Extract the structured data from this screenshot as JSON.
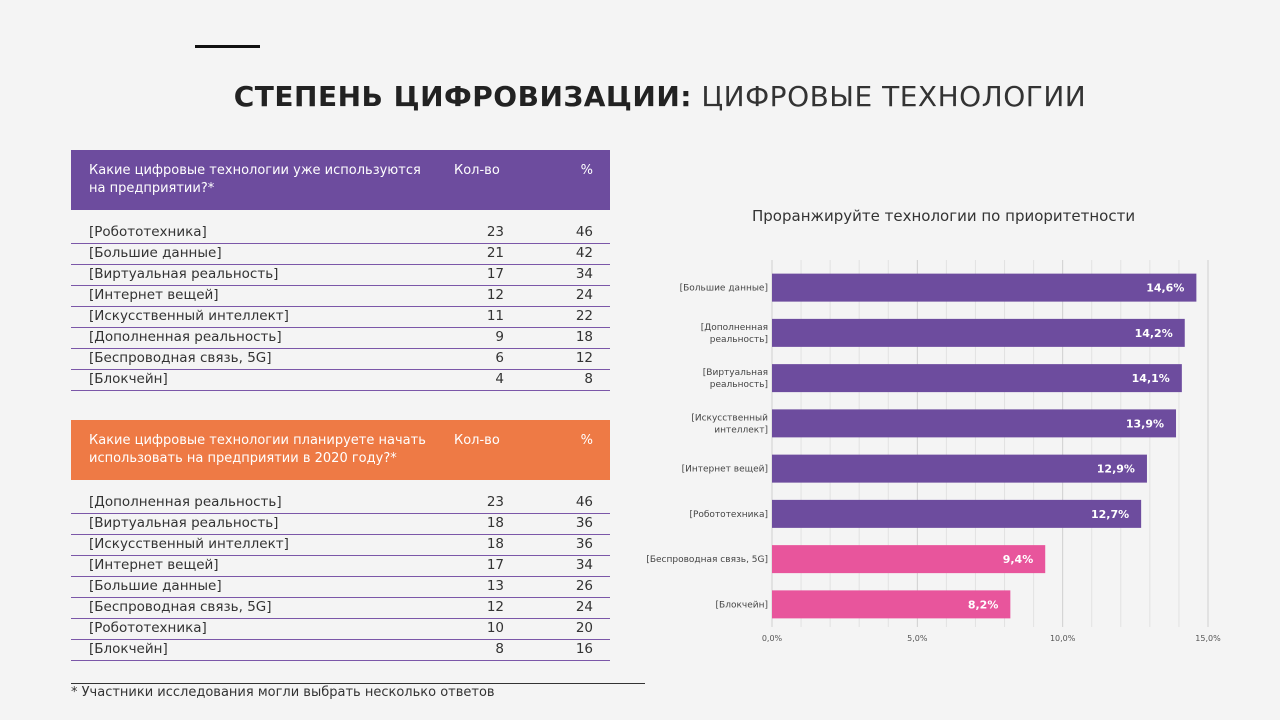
{
  "title": {
    "bold": "СТЕПЕНЬ ЦИФРОВИЗАЦИИ:",
    "light": "ЦИФРОВЫЕ ТЕХНОЛОГИИ"
  },
  "table1": {
    "question": "Какие цифровые технологии уже используются на предприятии?*",
    "count_header": "Кол-во",
    "pct_header": "%",
    "header_color": "#6d4c9e",
    "rows": [
      {
        "name": "[Робототехника]",
        "count": "23",
        "pct": "46"
      },
      {
        "name": "[Большие данные]",
        "count": "21",
        "pct": "42"
      },
      {
        "name": "[Виртуальная реальность]",
        "count": "17",
        "pct": "34"
      },
      {
        "name": "[Интернет вещей]",
        "count": "12",
        "pct": "24"
      },
      {
        "name": "[Искусственный интеллект]",
        "count": "11",
        "pct": "22"
      },
      {
        "name": "[Дополненная реальность]",
        "count": "9",
        "pct": "18"
      },
      {
        "name": "[Беспроводная связь, 5G]",
        "count": "6",
        "pct": "12"
      },
      {
        "name": "[Блокчейн]",
        "count": "4",
        "pct": "8"
      }
    ]
  },
  "table2": {
    "question": "Какие цифровые технологии планируете начать использовать на предприятии в 2020 году?*",
    "count_header": "Кол-во",
    "pct_header": "%",
    "header_color": "#ee7a45",
    "rows": [
      {
        "name": "[Дополненная реальность]",
        "count": "23",
        "pct": "46"
      },
      {
        "name": "[Виртуальная реальность]",
        "count": "18",
        "pct": "36"
      },
      {
        "name": "[Искусственный интеллект]",
        "count": "18",
        "pct": "36"
      },
      {
        "name": "[Интернет вещей]",
        "count": "17",
        "pct": "34"
      },
      {
        "name": "[Большие данные]",
        "count": "13",
        "pct": "26"
      },
      {
        "name": "[Беспроводная связь, 5G]",
        "count": "12",
        "pct": "24"
      },
      {
        "name": "[Робототехника]",
        "count": "10",
        "pct": "20"
      },
      {
        "name": "[Блокчейн]",
        "count": "8",
        "pct": "16"
      }
    ]
  },
  "footnote": "* Участники исследования могли выбрать несколько ответов",
  "chart_data": {
    "type": "bar",
    "orientation": "horizontal",
    "title": "Проранжируйте технологии по приоритетности",
    "categories": [
      [
        "[Большие данные]"
      ],
      [
        "[Дополненная",
        "реальность]"
      ],
      [
        "[Виртуальная",
        "реальность]"
      ],
      [
        "[Искусственный",
        "интеллект]"
      ],
      [
        "[Интернет вещей]"
      ],
      [
        "[Робототехника]"
      ],
      [
        "[Беспроводная связь, 5G]"
      ],
      [
        "[Блокчейн]"
      ]
    ],
    "values": [
      14.6,
      14.2,
      14.1,
      13.9,
      12.9,
      12.7,
      9.4,
      8.2
    ],
    "value_labels": [
      "14,6%",
      "14,2%",
      "14,1%",
      "13,9%",
      "12,9%",
      "12,7%",
      "9,4%",
      "8,2%"
    ],
    "colors": [
      "#6d4c9e",
      "#6d4c9e",
      "#6d4c9e",
      "#6d4c9e",
      "#6d4c9e",
      "#6d4c9e",
      "#e8559c",
      "#e8559c"
    ],
    "xlim": [
      0,
      15
    ],
    "xticks": [
      0,
      5,
      10,
      15
    ],
    "xtick_labels": [
      "0,0%",
      "5,0%",
      "10,0%",
      "15,0%"
    ],
    "grid": true,
    "legend": "none"
  }
}
